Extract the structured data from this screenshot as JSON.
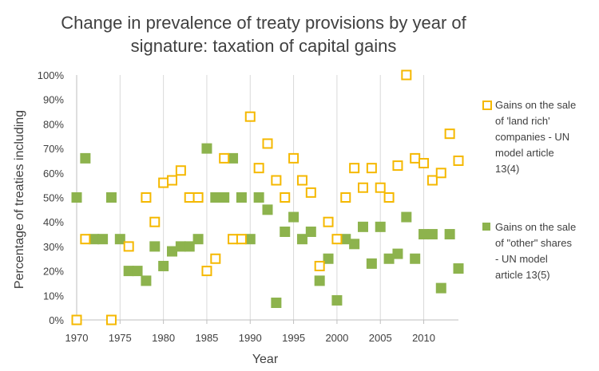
{
  "chart_data": {
    "type": "scatter",
    "title_line1": "Change in prevalence of treaty provisions by year of",
    "title_line2": "signature: taxation of capital gains",
    "xlabel": "Year",
    "ylabel": "Percentage of treaties including",
    "xlim": [
      1970,
      2014
    ],
    "ylim": [
      0,
      100
    ],
    "xticks": [
      1970,
      1975,
      1980,
      1985,
      1990,
      1995,
      2000,
      2005,
      2010
    ],
    "xtick_labels": [
      "1970",
      "1975",
      "1980",
      "1985",
      "1990",
      "1995",
      "2000",
      "2005",
      "2010"
    ],
    "yticks": [
      0,
      10,
      20,
      30,
      40,
      50,
      60,
      70,
      80,
      90,
      100
    ],
    "ytick_labels": [
      "0%",
      "10%",
      "20%",
      "30%",
      "40%",
      "50%",
      "60%",
      "70%",
      "80%",
      "90%",
      "100%"
    ],
    "grid": "vertical",
    "series": [
      {
        "name": "Gains on the sale of 'land rich' companies - UN model article 13(4)",
        "legend_lines": [
          "Gains on the sale",
          "of 'land rich'",
          "companies - UN",
          "model article",
          "13(4)"
        ],
        "marker": "hollow-square",
        "color": "#f5b800",
        "x": [
          1970,
          1971,
          1974,
          1976,
          1978,
          1979,
          1980,
          1981,
          1982,
          1983,
          1984,
          1985,
          1986,
          1987,
          1988,
          1989,
          1990,
          1991,
          1992,
          1993,
          1994,
          1995,
          1996,
          1997,
          1998,
          1999,
          2000,
          2001,
          2002,
          2003,
          2004,
          2005,
          2006,
          2007,
          2008,
          2009,
          2010,
          2011,
          2012,
          2013,
          2014
        ],
        "y": [
          0,
          33,
          0,
          30,
          50,
          40,
          56,
          57,
          61,
          50,
          50,
          20,
          25,
          66,
          33,
          33,
          83,
          62,
          72,
          57,
          50,
          66,
          57,
          52,
          22,
          40,
          33,
          50,
          62,
          54,
          62,
          54,
          50,
          63,
          100,
          66,
          64,
          57,
          60,
          76,
          65
        ]
      },
      {
        "name": "Gains on the sale of \"other\" shares - UN model article 13(5)",
        "legend_lines": [
          "Gains on the sale",
          "of \"other\" shares",
          "- UN model",
          "article 13(5)"
        ],
        "marker": "filled-square",
        "color": "#8db34d",
        "x": [
          1970,
          1971,
          1972,
          1973,
          1974,
          1975,
          1976,
          1977,
          1978,
          1979,
          1980,
          1981,
          1982,
          1983,
          1984,
          1985,
          1986,
          1987,
          1988,
          1989,
          1990,
          1991,
          1992,
          1993,
          1994,
          1995,
          1996,
          1997,
          1998,
          1999,
          2000,
          2001,
          2002,
          2003,
          2004,
          2005,
          2006,
          2007,
          2008,
          2009,
          2010,
          2011,
          2012,
          2013,
          2014
        ],
        "y": [
          50,
          66,
          33,
          33,
          50,
          33,
          20,
          20,
          16,
          30,
          22,
          28,
          30,
          30,
          33,
          70,
          50,
          50,
          66,
          50,
          33,
          50,
          45,
          7,
          36,
          42,
          33,
          36,
          16,
          25,
          8,
          33,
          31,
          38,
          23,
          38,
          25,
          27,
          42,
          25,
          35,
          35,
          13,
          35,
          21
        ]
      }
    ]
  }
}
